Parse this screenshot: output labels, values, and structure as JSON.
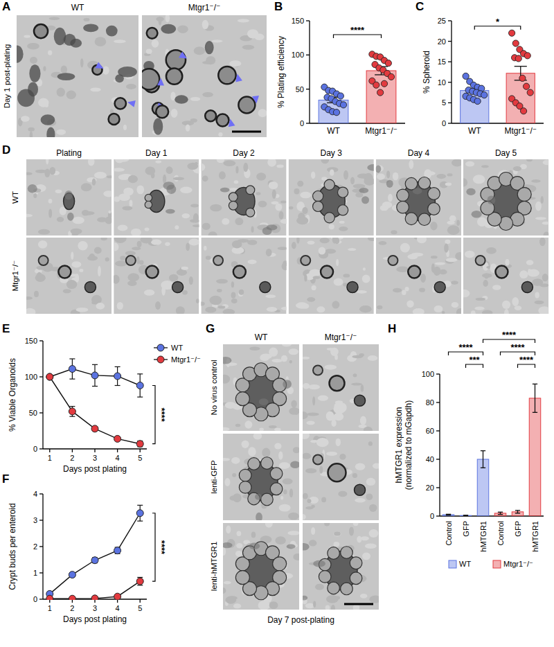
{
  "micrographs": [
    {
      "panel": "A",
      "columns": [
        "WT",
        "Mtgr1⁻/⁻"
      ],
      "rows": [
        "Day 1 post-plating"
      ]
    },
    {
      "panel": "D",
      "columns": [
        "Plating",
        "Day 1",
        "Day 2",
        "Day 3",
        "Day 4",
        "Day 5"
      ],
      "rows": [
        "WT",
        "Mtgr1⁻/⁻"
      ]
    },
    {
      "panel": "G",
      "columns": [
        "WT",
        "Mtgr1⁻/⁻"
      ],
      "rows": [
        "No virus control",
        "lenti-GFP",
        "lenti-hMTGR1"
      ],
      "caption": "Day 7 post-plating"
    }
  ],
  "chart_data": [
    {
      "panel": "B",
      "type": "bar",
      "ylabel": "% Plating efficiency",
      "categories": [
        "WT",
        "Mtgr1⁻/⁻"
      ],
      "values": [
        34,
        77
      ],
      "errors": [
        4,
        6
      ],
      "colors": [
        "#5b73e0",
        "#e23a3f"
      ],
      "points": [
        [
          53,
          48,
          47,
          43,
          40,
          38,
          36,
          32,
          29,
          27,
          24,
          20,
          17,
          16
        ],
        [
          101,
          98,
          97,
          92,
          88,
          86,
          81,
          78,
          73,
          68,
          62,
          56,
          45,
          58
        ]
      ],
      "ylim": [
        0,
        150
      ],
      "yticks": [
        0,
        50,
        100,
        150
      ],
      "annotations": [
        {
          "text": "****",
          "pair": [
            0,
            1
          ]
        }
      ]
    },
    {
      "panel": "C",
      "type": "bar",
      "ylabel": "% Spheroid",
      "categories": [
        "WT",
        "Mtgr1⁻/⁻"
      ],
      "values": [
        8,
        12.2
      ],
      "errors": [
        0.5,
        1.7
      ],
      "colors": [
        "#5b73e0",
        "#e23a3f"
      ],
      "points": [
        [
          11.5,
          10.2,
          9.3,
          8.8,
          8.5,
          8.1,
          7.8,
          7.5,
          7.2,
          6.9,
          6.6,
          6.2,
          5.8,
          5.4
        ],
        [
          22,
          19.5,
          18,
          17,
          16.5,
          16,
          15.8,
          11,
          9,
          7.5,
          6,
          5,
          4.2,
          3
        ]
      ],
      "ylim": [
        0,
        25
      ],
      "yticks": [
        0,
        5,
        10,
        15,
        20,
        25
      ],
      "annotations": [
        {
          "text": "*",
          "pair": [
            0,
            1
          ]
        }
      ]
    },
    {
      "panel": "E",
      "type": "line",
      "ylabel": "% Viable Organoids",
      "xlabel": "Days post plating",
      "x": [
        1,
        2,
        3,
        4,
        5
      ],
      "xlim": [
        0.7,
        5.3
      ],
      "xticks": [
        1,
        2,
        3,
        4,
        5
      ],
      "ylim": [
        0,
        150
      ],
      "yticks": [
        0,
        50,
        100,
        150
      ],
      "marker": "circle",
      "legend": "top-right",
      "series": [
        {
          "name": "WT",
          "color": "#5b73e0",
          "values": [
            100,
            111,
            102,
            101,
            88
          ],
          "errors": [
            0,
            14,
            15,
            13,
            16
          ]
        },
        {
          "name": "Mtgr1⁻/⁻",
          "color": "#e23a3f",
          "values": [
            100,
            52,
            28,
            14,
            7
          ],
          "errors": [
            0,
            7,
            3,
            2,
            4
          ]
        }
      ],
      "annotations": [
        {
          "text": "****"
        }
      ]
    },
    {
      "panel": "F",
      "type": "line",
      "ylabel": "Crypt buds per enteroid",
      "xlabel": "Days post plating",
      "x": [
        1,
        2,
        3,
        4,
        5
      ],
      "xlim": [
        0.7,
        5.3
      ],
      "xticks": [
        1,
        2,
        3,
        4,
        5
      ],
      "ylim": [
        0,
        4
      ],
      "yticks": [
        0,
        1,
        2,
        3,
        4
      ],
      "marker": "circle",
      "series": [
        {
          "name": "WT",
          "color": "#5b73e0",
          "values": [
            0.2,
            0.93,
            1.48,
            1.85,
            3.27
          ],
          "errors": [
            0.05,
            0.08,
            0.1,
            0.12,
            0.3
          ]
        },
        {
          "name": "Mtgr1⁻/⁻",
          "color": "#e23a3f",
          "values": [
            0.02,
            0.02,
            0.03,
            0.1,
            0.68
          ],
          "errors": [
            0.01,
            0.01,
            0.02,
            0.05,
            0.15
          ]
        }
      ],
      "annotations": [
        {
          "text": "****"
        }
      ]
    },
    {
      "panel": "H",
      "type": "bar",
      "ylabel": [
        "hMTGR1 expression",
        "(normalized to mGapdh)"
      ],
      "categories": [
        "Control",
        "GFP",
        "hMTGR1",
        "Control",
        "GFP",
        "hMTGR1"
      ],
      "series": [
        {
          "name": "WT",
          "color": "#5b73e0",
          "values": [
            1,
            0.4,
            40,
            null,
            null,
            null
          ],
          "errors": [
            0.3,
            0.2,
            6,
            null,
            null,
            null
          ]
        },
        {
          "name": "Mtgr1⁻/⁻",
          "color": "#e23a3f",
          "values": [
            null,
            null,
            null,
            2,
            3,
            83
          ],
          "errors": [
            null,
            null,
            null,
            0.8,
            1,
            10
          ]
        }
      ],
      "ylim": [
        0,
        100
      ],
      "yticks": [
        0,
        20,
        40,
        60,
        80,
        100
      ],
      "legend": "bottom",
      "annotations": [
        {
          "text": "****",
          "pair": [
            2,
            5
          ]
        },
        {
          "text": "****",
          "pair": [
            0,
            2
          ]
        },
        {
          "text": "***",
          "pair": [
            1,
            2
          ]
        },
        {
          "text": "****",
          "pair": [
            3,
            5
          ]
        },
        {
          "text": "****",
          "pair": [
            4,
            5
          ]
        }
      ]
    }
  ]
}
